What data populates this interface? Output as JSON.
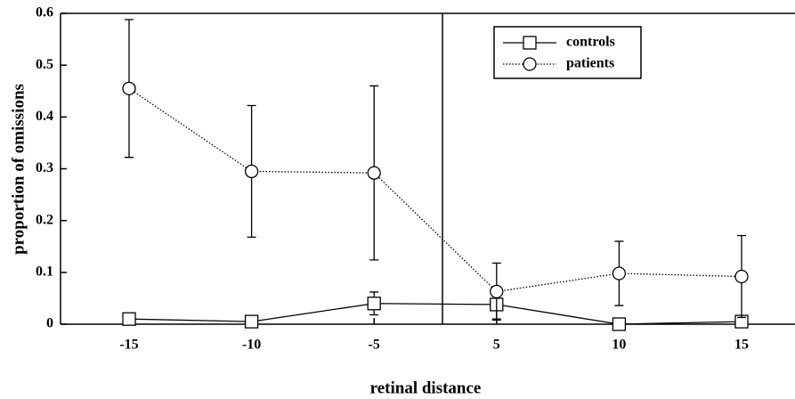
{
  "chart_data": {
    "type": "line",
    "xlabel": "retinal distance",
    "ylabel": "proportion of omissions",
    "categories": [
      "-15",
      "-10",
      "-5",
      "5",
      "10",
      "15"
    ],
    "series": [
      {
        "name": "controls",
        "color": "#000000",
        "marker": "square",
        "linestyle": "solid",
        "values": [
          0.01,
          0.005,
          0.04,
          0.038,
          0.0,
          0.005
        ],
        "errors": [
          0.005,
          0.004,
          0.022,
          0.028,
          0.003,
          0.004
        ]
      },
      {
        "name": "patients",
        "color": "#000000",
        "marker": "circle",
        "linestyle": "dotted",
        "values": [
          0.455,
          0.295,
          0.292,
          0.063,
          0.098,
          0.092
        ],
        "errors": [
          0.133,
          0.127,
          0.168,
          0.055,
          0.062,
          0.079
        ]
      }
    ],
    "ylim": [
      0,
      0.6
    ],
    "yticks": [
      0,
      0.1,
      0.2,
      0.3,
      0.4,
      0.5,
      0.6
    ],
    "legend": "upper right",
    "grid": false
  }
}
